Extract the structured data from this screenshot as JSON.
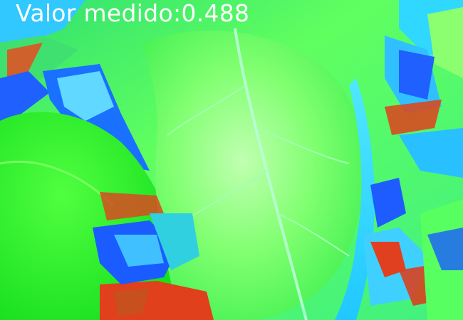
{
  "image": {
    "overlay_text": "Valor medido:0.488",
    "colors": {
      "text": "#ffffff",
      "green": "#18f018",
      "lime": "#60ff50",
      "mint": "#90ffb0",
      "cyan": "#20e0ff",
      "blue": "#1a5cff",
      "red": "#e83a10"
    }
  }
}
